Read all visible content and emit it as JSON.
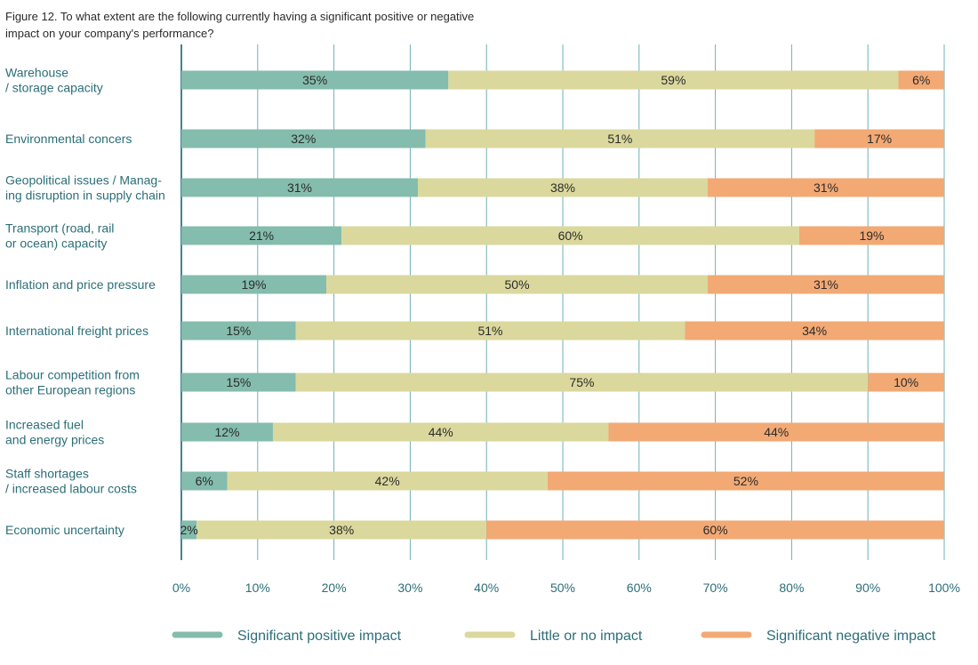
{
  "title": "Figure 12. To what extent are the following currently having a significant positive or negative impact on your company's performance?",
  "chart_data": {
    "type": "bar",
    "orientation": "horizontal",
    "stacked": true,
    "categories": [
      "Warehouse\n/ storage capacity",
      "Environmental concers",
      "Geopolitical issues / Manag-\ning disruption in supply chain",
      "Transport (road, rail\nor ocean) capacity",
      "Inflation and price pressure",
      "International freight prices",
      "Labour competition from\nother European regions",
      "Increased fuel\nand energy prices",
      "Staff shortages\n/ increased labour costs",
      "Economic uncertainty"
    ],
    "series": [
      {
        "name": "Significant positive impact",
        "color": "#84bcad",
        "values": [
          35,
          32,
          31,
          21,
          19,
          15,
          15,
          12,
          6,
          2
        ]
      },
      {
        "name": "Little or no impact",
        "color": "#dad89d",
        "values": [
          59,
          51,
          38,
          60,
          50,
          51,
          75,
          44,
          42,
          38
        ]
      },
      {
        "name": "Significant negative impact",
        "color": "#f2a974",
        "values": [
          6,
          17,
          31,
          19,
          31,
          34,
          10,
          44,
          52,
          60
        ]
      }
    ],
    "xlim": [
      0,
      100
    ],
    "xticks": [
      "0%",
      "10%",
      "20%",
      "30%",
      "40%",
      "50%",
      "60%",
      "70%",
      "80%",
      "90%",
      "100%"
    ],
    "value_suffix": "%",
    "grid": true,
    "legend_position": "bottom"
  }
}
